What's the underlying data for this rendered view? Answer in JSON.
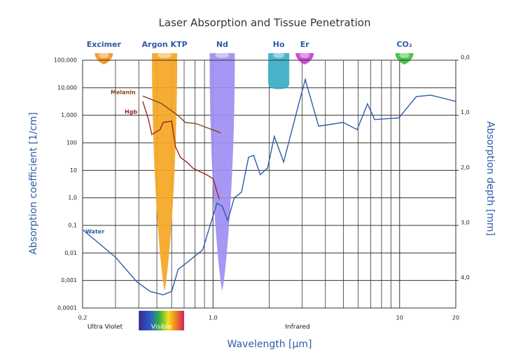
{
  "chart_data": {
    "type": "line",
    "title": "Laser Absorption and Tissue Penetration",
    "xlabel": "Wavelength [µm]",
    "ylabel": "Absorption coefficient [1/cm]",
    "y2label": "Absorption depth [mm]",
    "xscale": "log",
    "yscale": "log",
    "xlim": [
      0.2,
      20
    ],
    "ylim": [
      0.0001,
      100000
    ],
    "y2lim": [
      4.5,
      0
    ],
    "grid": true,
    "xticks": [
      {
        "value": 0.2,
        "label": "0,2"
      },
      {
        "value": 1,
        "label": "1,0"
      },
      10,
      20
    ],
    "x_minor_ticks": [
      0.3,
      0.4,
      0.5,
      0.6,
      0.7,
      0.8,
      0.9,
      2,
      3,
      4,
      5,
      6,
      7,
      8,
      9
    ],
    "yticks": [
      {
        "value": 0.0001,
        "label": "0,0001"
      },
      {
        "value": 0.001,
        "label": "0,001"
      },
      {
        "value": 0.01,
        "label": "0,01"
      },
      {
        "value": 0.1,
        "label": "0,1"
      },
      {
        "value": 1,
        "label": "1,0"
      },
      10,
      100,
      {
        "value": 1000,
        "label": "1,000"
      },
      {
        "value": 10000,
        "label": "10,000"
      },
      {
        "value": 100000,
        "label": "100,000"
      }
    ],
    "y2ticks": [
      {
        "value": 0,
        "label": "0,0"
      },
      {
        "value": 1,
        "label": "1,0"
      },
      {
        "value": 2,
        "label": "2,0"
      },
      {
        "value": 3,
        "label": "3,0"
      },
      {
        "value": 4,
        "label": "4,0"
      }
    ],
    "series": [
      {
        "name": "Water",
        "color": "#2d5ba8",
        "x": [
          0.2,
          0.3,
          0.39,
          0.46,
          0.54,
          0.6,
          0.65,
          0.74,
          0.88,
          1.05,
          1.12,
          1.2,
          1.3,
          1.42,
          1.55,
          1.65,
          1.79,
          1.96,
          2.13,
          2.39,
          2.84,
          3.12,
          3.68,
          4.98,
          5.92,
          6.73,
          7.34,
          9.9,
          12.3,
          14.7,
          20
        ],
        "values": [
          0.07,
          0.007,
          0.0009,
          0.0004,
          0.0003,
          0.0004,
          0.0025,
          0.005,
          0.013,
          0.65,
          0.5,
          0.15,
          1,
          1.6,
          30,
          35,
          7,
          12,
          170,
          20,
          1800,
          20000,
          400,
          550,
          300,
          2600,
          700,
          800,
          4800,
          5400,
          3200
        ]
      },
      {
        "name": "Melanin",
        "color": "#7a4a22",
        "x": [
          0.42,
          0.53,
          0.65,
          0.71,
          0.81,
          1.1
        ],
        "values": [
          5000,
          2650,
          980,
          550,
          500,
          230
        ]
      },
      {
        "name": "Hgb",
        "color": "#a32020",
        "x": [
          0.42,
          0.45,
          0.47,
          0.52,
          0.54,
          0.6,
          0.63,
          0.67,
          0.73,
          0.78,
          0.85,
          0.92,
          1.0,
          1.08
        ],
        "values": [
          3200,
          730,
          200,
          300,
          550,
          610,
          70,
          29,
          19,
          12,
          9,
          7,
          5,
          0.9
        ]
      }
    ],
    "lasers": [
      {
        "name": "Excimer",
        "x": 0.26,
        "depth": 0.05,
        "color": "#f7931e"
      },
      {
        "name": "Argon KTP",
        "x": 0.55,
        "depth": 4.15,
        "color": "#f5a623"
      },
      {
        "name": "Nd",
        "x": 1.12,
        "depth": 4.15,
        "color": "#9d8ef2"
      },
      {
        "name": "Ho",
        "x": 2.25,
        "depth": 0.5,
        "color": "#38aec6"
      },
      {
        "name": "Er",
        "x": 3.1,
        "depth": 0.05,
        "color": "#c23fd2"
      },
      {
        "name": "CO₂",
        "x": 10.6,
        "depth": 0.05,
        "color": "#3cbf3c"
      }
    ],
    "visible_band": [
      0.4,
      0.7
    ],
    "annotations": [
      "Ultra Violet",
      "Visible",
      "Infrared"
    ]
  }
}
